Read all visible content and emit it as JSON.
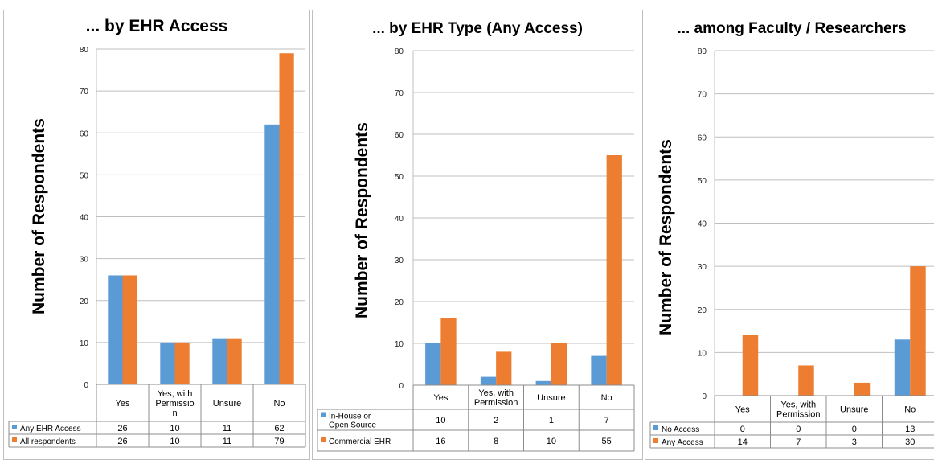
{
  "chart_data": [
    {
      "type": "bar",
      "title": "... by EHR Access",
      "ylabel": "Number of Respondents",
      "categories": [
        "Yes",
        "Yes, with Permissio n",
        "Unsure",
        "No"
      ],
      "ylim": [
        0,
        80
      ],
      "yticks": [
        0,
        10,
        20,
        30,
        40,
        50,
        60,
        70,
        80
      ],
      "grid": true,
      "legend_placement": "bottom data table",
      "series": [
        {
          "name": "Any EHR Access",
          "color": "#5b9bd5",
          "values": [
            26,
            10,
            11,
            62
          ]
        },
        {
          "name": "All respondents",
          "color": "#ed7d31",
          "values": [
            26,
            10,
            11,
            79
          ]
        }
      ]
    },
    {
      "type": "bar",
      "title": "... by EHR Type (Any Access)",
      "ylabel": "Number of Respondents",
      "categories": [
        "Yes",
        "Yes, with Permission",
        "Unsure",
        "No"
      ],
      "ylim": [
        0,
        80
      ],
      "yticks": [
        0,
        10,
        20,
        30,
        40,
        50,
        60,
        70,
        80
      ],
      "grid": true,
      "legend_placement": "bottom data table",
      "series": [
        {
          "name": "In-House or Open Source",
          "color": "#5b9bd5",
          "values": [
            10,
            2,
            1,
            7
          ]
        },
        {
          "name": "Commercial EHR",
          "color": "#ed7d31",
          "values": [
            16,
            8,
            10,
            55
          ]
        }
      ]
    },
    {
      "type": "bar",
      "title": "... among Faculty / Researchers",
      "ylabel": "Number of Respondents",
      "categories": [
        "Yes",
        "Yes, with Permission",
        "Unsure",
        "No"
      ],
      "ylim": [
        0,
        80
      ],
      "yticks": [
        0,
        10,
        20,
        30,
        40,
        50,
        60,
        70,
        80
      ],
      "grid": true,
      "legend_placement": "bottom data table",
      "series": [
        {
          "name": "No Access",
          "color": "#5b9bd5",
          "values": [
            0,
            0,
            0,
            13
          ]
        },
        {
          "name": "Any Access",
          "color": "#ed7d31",
          "values": [
            14,
            7,
            3,
            30
          ]
        }
      ]
    }
  ]
}
